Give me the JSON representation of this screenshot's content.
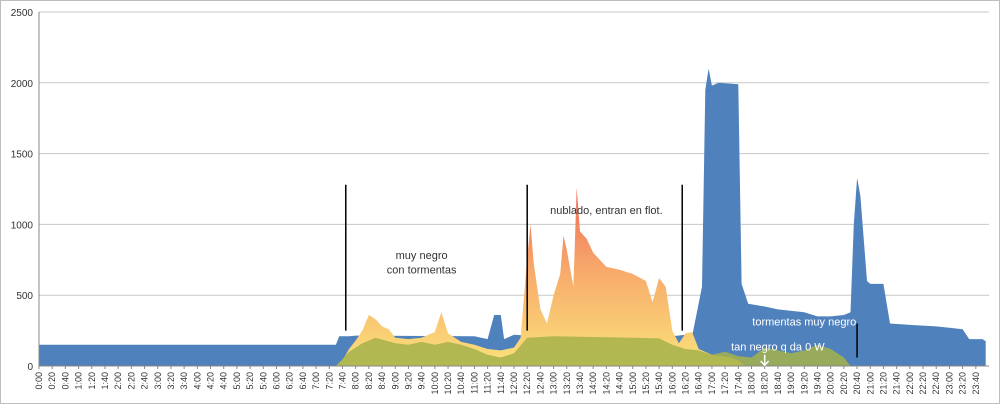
{
  "chart_data": {
    "type": "area",
    "title": "",
    "xlabel": "",
    "ylabel": "",
    "ylim": [
      0,
      2500
    ],
    "yticks": [
      0,
      500,
      1000,
      1500,
      2000,
      2500
    ],
    "x_tick_labels": [
      "0:00",
      "0:20",
      "0:40",
      "1:00",
      "1:20",
      "1:40",
      "2:00",
      "2:20",
      "2:40",
      "3:00",
      "3:20",
      "3:40",
      "4:00",
      "4:20",
      "4:40",
      "5:00",
      "5:20",
      "5:40",
      "6:00",
      "6:20",
      "6:40",
      "7:00",
      "7:20",
      "7:40",
      "8:00",
      "8:20",
      "8:40",
      "9:00",
      "9:20",
      "9:40",
      "10:00",
      "10:20",
      "10:40",
      "11:00",
      "11:20",
      "11:40",
      "12:00",
      "12:20",
      "12:40",
      "13:00",
      "13:20",
      "13:40",
      "14:00",
      "14:20",
      "14:40",
      "15:00",
      "15:20",
      "15:40",
      "16:00",
      "16:20",
      "16:40",
      "17:00",
      "17:20",
      "17:40",
      "18:00",
      "18:20",
      "18:40",
      "19:00",
      "19:20",
      "19:40",
      "20:00",
      "20:20",
      "20:40",
      "21:00",
      "21:20",
      "21:40",
      "22:00",
      "22:20",
      "22:40",
      "23:00",
      "23:20",
      "23:40"
    ],
    "grid": true,
    "series": [
      {
        "color": "#4f81bd",
        "points": [
          [
            "0:00",
            150
          ],
          [
            "0:10",
            150
          ],
          [
            "7:30",
            150
          ],
          [
            "7:35",
            210
          ],
          [
            "7:50",
            210
          ],
          [
            "8:00",
            215
          ],
          [
            "11:00",
            210
          ],
          [
            "11:20",
            190
          ],
          [
            "11:30",
            360
          ],
          [
            "11:40",
            360
          ],
          [
            "11:45",
            190
          ],
          [
            "12:00",
            220
          ],
          [
            "12:20",
            215
          ],
          [
            "16:00",
            210
          ],
          [
            "16:20",
            220
          ],
          [
            "16:30",
            210
          ],
          [
            "16:45",
            560
          ],
          [
            "16:50",
            1950
          ],
          [
            "16:55",
            2100
          ],
          [
            "17:00",
            1980
          ],
          [
            "17:10",
            2000
          ],
          [
            "17:40",
            1990
          ],
          [
            "17:45",
            580
          ],
          [
            "17:55",
            440
          ],
          [
            "18:20",
            420
          ],
          [
            "18:40",
            400
          ],
          [
            "19:20",
            380
          ],
          [
            "19:40",
            350
          ],
          [
            "20:00",
            350
          ],
          [
            "20:20",
            360
          ],
          [
            "20:30",
            380
          ],
          [
            "20:35",
            1000
          ],
          [
            "20:40",
            1330
          ],
          [
            "20:45",
            1200
          ],
          [
            "20:55",
            600
          ],
          [
            "21:00",
            580
          ],
          [
            "21:10",
            580
          ],
          [
            "21:20",
            580
          ],
          [
            "21:30",
            300
          ],
          [
            "22:00",
            290
          ],
          [
            "22:40",
            280
          ],
          [
            "23:00",
            270
          ],
          [
            "23:20",
            260
          ],
          [
            "23:30",
            190
          ],
          [
            "23:50",
            190
          ],
          [
            "23:55",
            175
          ]
        ]
      },
      {
        "color": "#f7c85a",
        "points": [
          [
            "7:30",
            0
          ],
          [
            "7:40",
            40
          ],
          [
            "7:50",
            120
          ],
          [
            "8:00",
            180
          ],
          [
            "8:10",
            250
          ],
          [
            "8:20",
            360
          ],
          [
            "8:30",
            330
          ],
          [
            "8:40",
            280
          ],
          [
            "8:50",
            260
          ],
          [
            "9:00",
            200
          ],
          [
            "9:20",
            190
          ],
          [
            "9:40",
            200
          ],
          [
            "10:00",
            240
          ],
          [
            "10:10",
            380
          ],
          [
            "10:20",
            230
          ],
          [
            "10:40",
            170
          ],
          [
            "11:00",
            150
          ],
          [
            "11:20",
            120
          ],
          [
            "11:40",
            110
          ],
          [
            "12:00",
            130
          ],
          [
            "12:10",
            200
          ],
          [
            "12:20",
            760
          ],
          [
            "12:25",
            1000
          ],
          [
            "12:30",
            720
          ],
          [
            "12:40",
            400
          ],
          [
            "12:50",
            300
          ],
          [
            "13:00",
            500
          ],
          [
            "13:10",
            650
          ],
          [
            "13:15",
            920
          ],
          [
            "13:20",
            820
          ],
          [
            "13:30",
            560
          ],
          [
            "13:35",
            1260
          ],
          [
            "13:40",
            950
          ],
          [
            "13:50",
            900
          ],
          [
            "14:00",
            800
          ],
          [
            "14:20",
            700
          ],
          [
            "14:40",
            680
          ],
          [
            "15:00",
            650
          ],
          [
            "15:20",
            600
          ],
          [
            "15:30",
            450
          ],
          [
            "15:40",
            620
          ],
          [
            "15:50",
            560
          ],
          [
            "16:00",
            250
          ],
          [
            "16:10",
            160
          ],
          [
            "16:20",
            230
          ],
          [
            "16:30",
            240
          ],
          [
            "16:35",
            180
          ],
          [
            "16:40",
            120
          ],
          [
            "17:00",
            80
          ],
          [
            "17:30",
            60
          ],
          [
            "17:40",
            40
          ],
          [
            "17:50",
            0
          ]
        ]
      },
      {
        "color": "#a4b24a",
        "points": [
          [
            "7:30",
            0
          ],
          [
            "7:50",
            100
          ],
          [
            "8:10",
            160
          ],
          [
            "8:30",
            200
          ],
          [
            "9:00",
            160
          ],
          [
            "9:20",
            150
          ],
          [
            "9:40",
            170
          ],
          [
            "10:00",
            150
          ],
          [
            "10:20",
            170
          ],
          [
            "10:40",
            150
          ],
          [
            "11:00",
            120
          ],
          [
            "11:20",
            80
          ],
          [
            "11:40",
            60
          ],
          [
            "12:00",
            90
          ],
          [
            "12:20",
            200
          ],
          [
            "13:00",
            210
          ],
          [
            "14:00",
            205
          ],
          [
            "15:00",
            200
          ],
          [
            "15:40",
            195
          ],
          [
            "16:00",
            150
          ],
          [
            "16:20",
            120
          ],
          [
            "16:40",
            110
          ],
          [
            "17:00",
            80
          ],
          [
            "17:20",
            100
          ],
          [
            "17:40",
            70
          ],
          [
            "18:00",
            60
          ],
          [
            "18:20",
            130
          ],
          [
            "18:40",
            110
          ],
          [
            "19:00",
            90
          ],
          [
            "19:20",
            110
          ],
          [
            "19:40",
            150
          ],
          [
            "20:00",
            120
          ],
          [
            "20:20",
            60
          ],
          [
            "20:30",
            0
          ]
        ]
      }
    ],
    "markers": [
      "7:45",
      "12:20",
      "16:15",
      "20:40"
    ],
    "annotations": [
      {
        "text": "muy negro",
        "at": [
          "9:40",
          755
        ]
      },
      {
        "text": "con tormentas",
        "at": [
          "9:40",
          655
        ]
      },
      {
        "text": "nublado, entran en flot.",
        "at": [
          "14:20",
          1075
        ]
      },
      {
        "text": "tormentas muy negro",
        "at": [
          "19:20",
          285
        ]
      },
      {
        "text": "tan negro q da 0 W",
        "at": [
          "18:40",
          110
        ]
      }
    ]
  }
}
